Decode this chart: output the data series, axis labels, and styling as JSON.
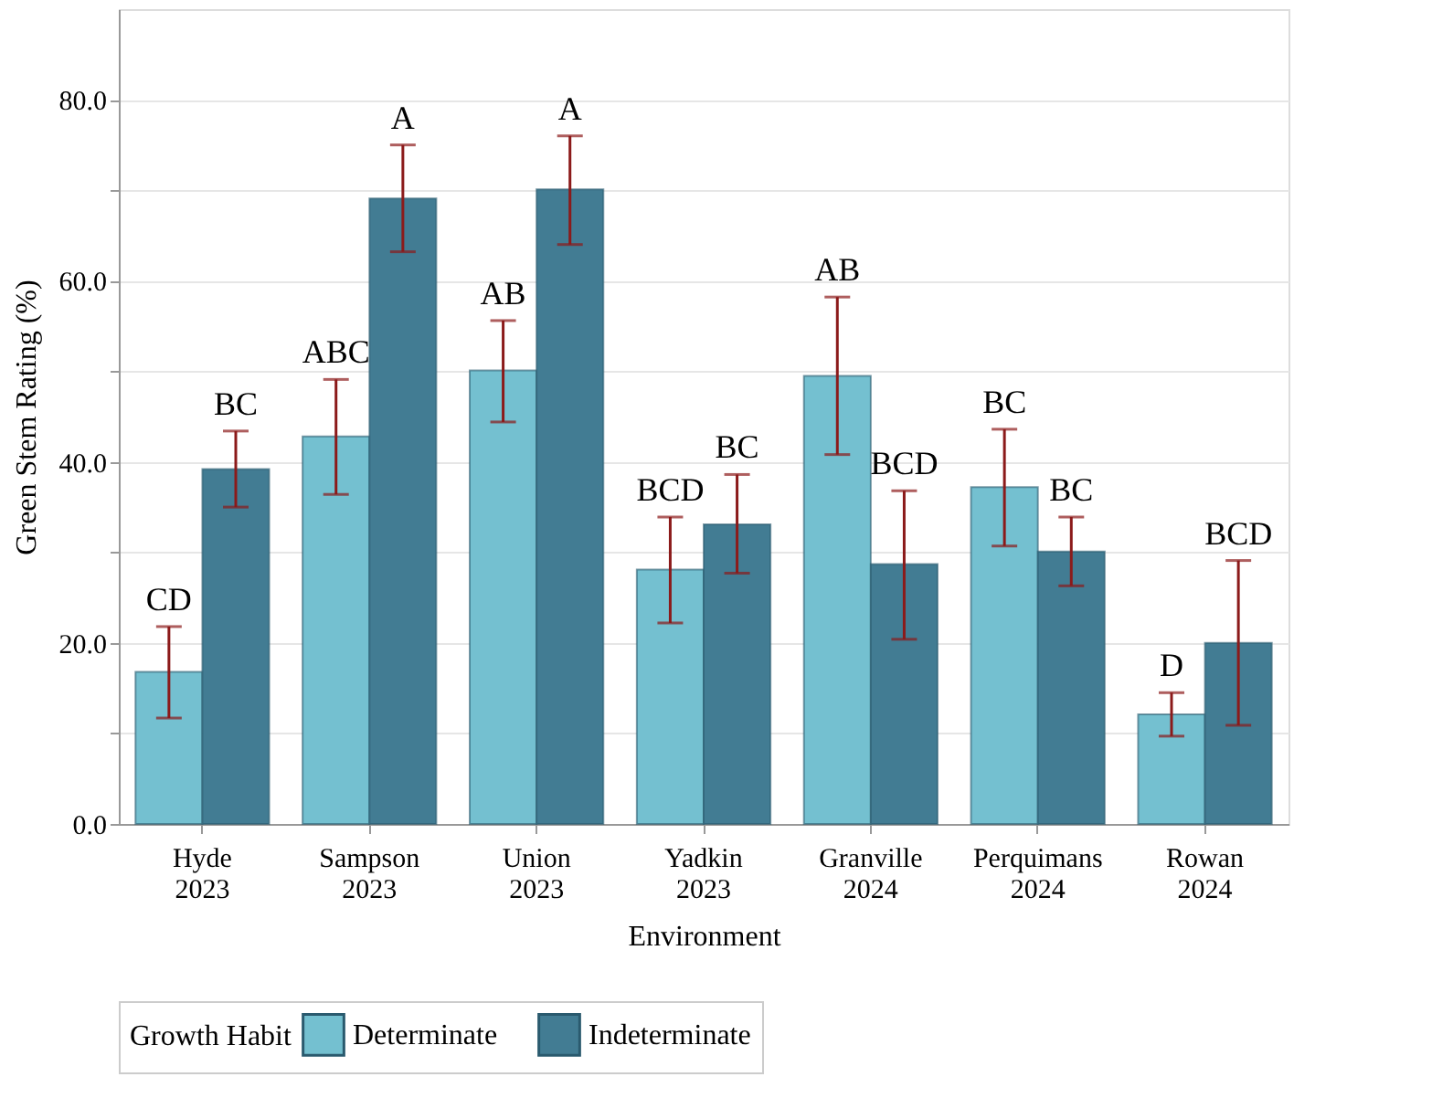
{
  "chart_data": {
    "type": "bar",
    "xlabel": "Environment",
    "ylabel": "Green Stem Rating (%)",
    "legend_title": "Growth Habit",
    "legend": "bottom",
    "grid": "y",
    "categories": [
      "Hyde 2023",
      "Sampson 2023",
      "Union 2023",
      "Yadkin 2023",
      "Granville 2024",
      "Perquimans 2024",
      "Rowan 2024"
    ],
    "ylim": [
      0,
      90
    ],
    "yticks": [
      {
        "value": 0,
        "label": "0.0"
      },
      {
        "value": 10,
        "label": null
      },
      {
        "value": 20,
        "label": "20.0"
      },
      {
        "value": 30,
        "label": null
      },
      {
        "value": 40,
        "label": "40.0"
      },
      {
        "value": 50,
        "label": null
      },
      {
        "value": 60,
        "label": "60.0"
      },
      {
        "value": 70,
        "label": null
      },
      {
        "value": 80,
        "label": "80.0"
      }
    ],
    "series": [
      {
        "name": "Determinate",
        "color": "#74c0d0",
        "values": [
          16.8,
          42.8,
          50.1,
          28.1,
          49.5,
          37.2,
          12.1
        ],
        "errors": [
          [
            11.7,
            21.8
          ],
          [
            36.4,
            49.1
          ],
          [
            44.4,
            55.6
          ],
          [
            22.2,
            33.9
          ],
          [
            40.8,
            58.2
          ],
          [
            30.7,
            43.6
          ],
          [
            9.7,
            14.5
          ]
        ],
        "value_labels": [
          "CD",
          "ABC",
          "AB",
          "BCD",
          "AB",
          "BC",
          "D"
        ]
      },
      {
        "name": "Indeterminate",
        "color": "#427c93",
        "values": [
          39.2,
          69.1,
          70.1,
          33.1,
          28.7,
          30.1,
          20.0
        ],
        "errors": [
          [
            35.0,
            43.4
          ],
          [
            63.2,
            75.0
          ],
          [
            64.0,
            76.0
          ],
          [
            27.7,
            38.6
          ],
          [
            20.4,
            36.8
          ],
          [
            26.3,
            33.9
          ],
          [
            10.9,
            29.1
          ]
        ],
        "value_labels": [
          "BC",
          "A",
          "A",
          "BC",
          "BCD",
          "BC",
          "BCD"
        ]
      }
    ]
  }
}
